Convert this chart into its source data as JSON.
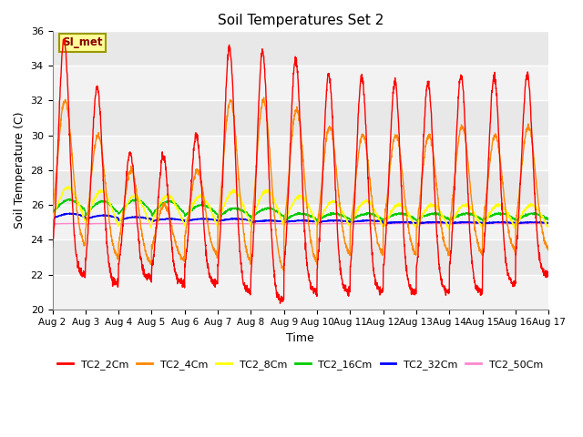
{
  "title": "Soil Temperatures Set 2",
  "xlabel": "Time",
  "ylabel": "Soil Temperature (C)",
  "ylim": [
    20,
    36
  ],
  "yticks": [
    20,
    22,
    24,
    26,
    28,
    30,
    32,
    34,
    36
  ],
  "plot_bg_color": "#e8e8e8",
  "series": {
    "TC2_2Cm": {
      "color": "#ff0000",
      "lw": 1.0
    },
    "TC2_4Cm": {
      "color": "#ff8800",
      "lw": 1.0
    },
    "TC2_8Cm": {
      "color": "#ffff00",
      "lw": 1.0
    },
    "TC2_16Cm": {
      "color": "#00cc00",
      "lw": 1.0
    },
    "TC2_32Cm": {
      "color": "#0000ff",
      "lw": 1.2
    },
    "TC2_50Cm": {
      "color": "#ff88cc",
      "lw": 1.0
    }
  },
  "legend_label": "SI_met",
  "legend_bg": "#ffff99",
  "legend_border": "#999900",
  "n_days": 15,
  "start_day": 2,
  "points_per_day": 144,
  "day_peaks_2cm": [
    35.5,
    32.8,
    29.0,
    28.8,
    30.0,
    35.0,
    34.8,
    34.4,
    33.5,
    33.4,
    33.0,
    33.0,
    33.5,
    33.4,
    33.5
  ],
  "day_mins_2cm": [
    22.0,
    21.5,
    21.8,
    21.5,
    21.5,
    21.0,
    20.5,
    21.0,
    21.0,
    21.0,
    21.0,
    21.0,
    21.0,
    21.5,
    22.0
  ],
  "day_peaks_4cm": [
    32.0,
    30.0,
    28.0,
    26.0,
    28.0,
    32.0,
    32.0,
    31.5,
    30.5,
    30.0,
    30.0,
    30.0,
    30.5,
    30.0,
    30.5
  ],
  "day_mins_4cm": [
    23.5,
    22.8,
    22.5,
    22.8,
    23.0,
    22.5,
    22.0,
    22.5,
    23.0,
    23.0,
    23.0,
    23.0,
    23.0,
    23.2,
    23.3
  ],
  "day_peaks_8cm": [
    27.0,
    26.8,
    26.5,
    26.5,
    26.5,
    26.8,
    26.8,
    26.5,
    26.2,
    26.2,
    26.0,
    26.0,
    26.0,
    26.0,
    26.0
  ],
  "day_mins_8cm": [
    23.8,
    23.5,
    23.5,
    23.8,
    23.6,
    23.5,
    23.5,
    23.8,
    23.8,
    23.8,
    23.8,
    23.8,
    23.8,
    23.8,
    23.8
  ],
  "day_peaks_16cm": [
    26.3,
    26.2,
    26.3,
    26.2,
    26.0,
    25.8,
    25.8,
    25.5,
    25.5,
    25.5,
    25.5,
    25.5,
    25.5,
    25.5,
    25.5
  ],
  "day_mins_16cm": [
    24.8,
    24.6,
    24.6,
    24.6,
    24.7,
    24.7,
    24.7,
    24.7,
    24.7,
    24.7,
    24.7,
    24.7,
    24.7,
    24.7,
    24.7
  ],
  "day_peaks_32cm": [
    25.5,
    25.4,
    25.3,
    25.2,
    25.2,
    25.2,
    25.1,
    25.1,
    25.1,
    25.1,
    25.0,
    25.0,
    25.0,
    25.0,
    25.0
  ],
  "day_mins_32cm": [
    24.9,
    24.9,
    24.9,
    24.9,
    24.9,
    24.9,
    24.9,
    24.9,
    24.9,
    24.9,
    24.9,
    24.9,
    24.9,
    24.9,
    24.9
  ],
  "day_peaks_50cm": [
    24.93,
    24.93,
    24.93,
    24.93,
    24.93,
    24.93,
    24.93,
    24.93,
    24.93,
    24.93,
    24.93,
    24.93,
    24.93,
    24.93,
    24.93
  ],
  "day_mins_50cm": [
    24.87,
    24.87,
    24.87,
    24.87,
    24.87,
    24.87,
    24.87,
    24.87,
    24.87,
    24.87,
    24.87,
    24.87,
    24.87,
    24.87,
    24.87
  ]
}
